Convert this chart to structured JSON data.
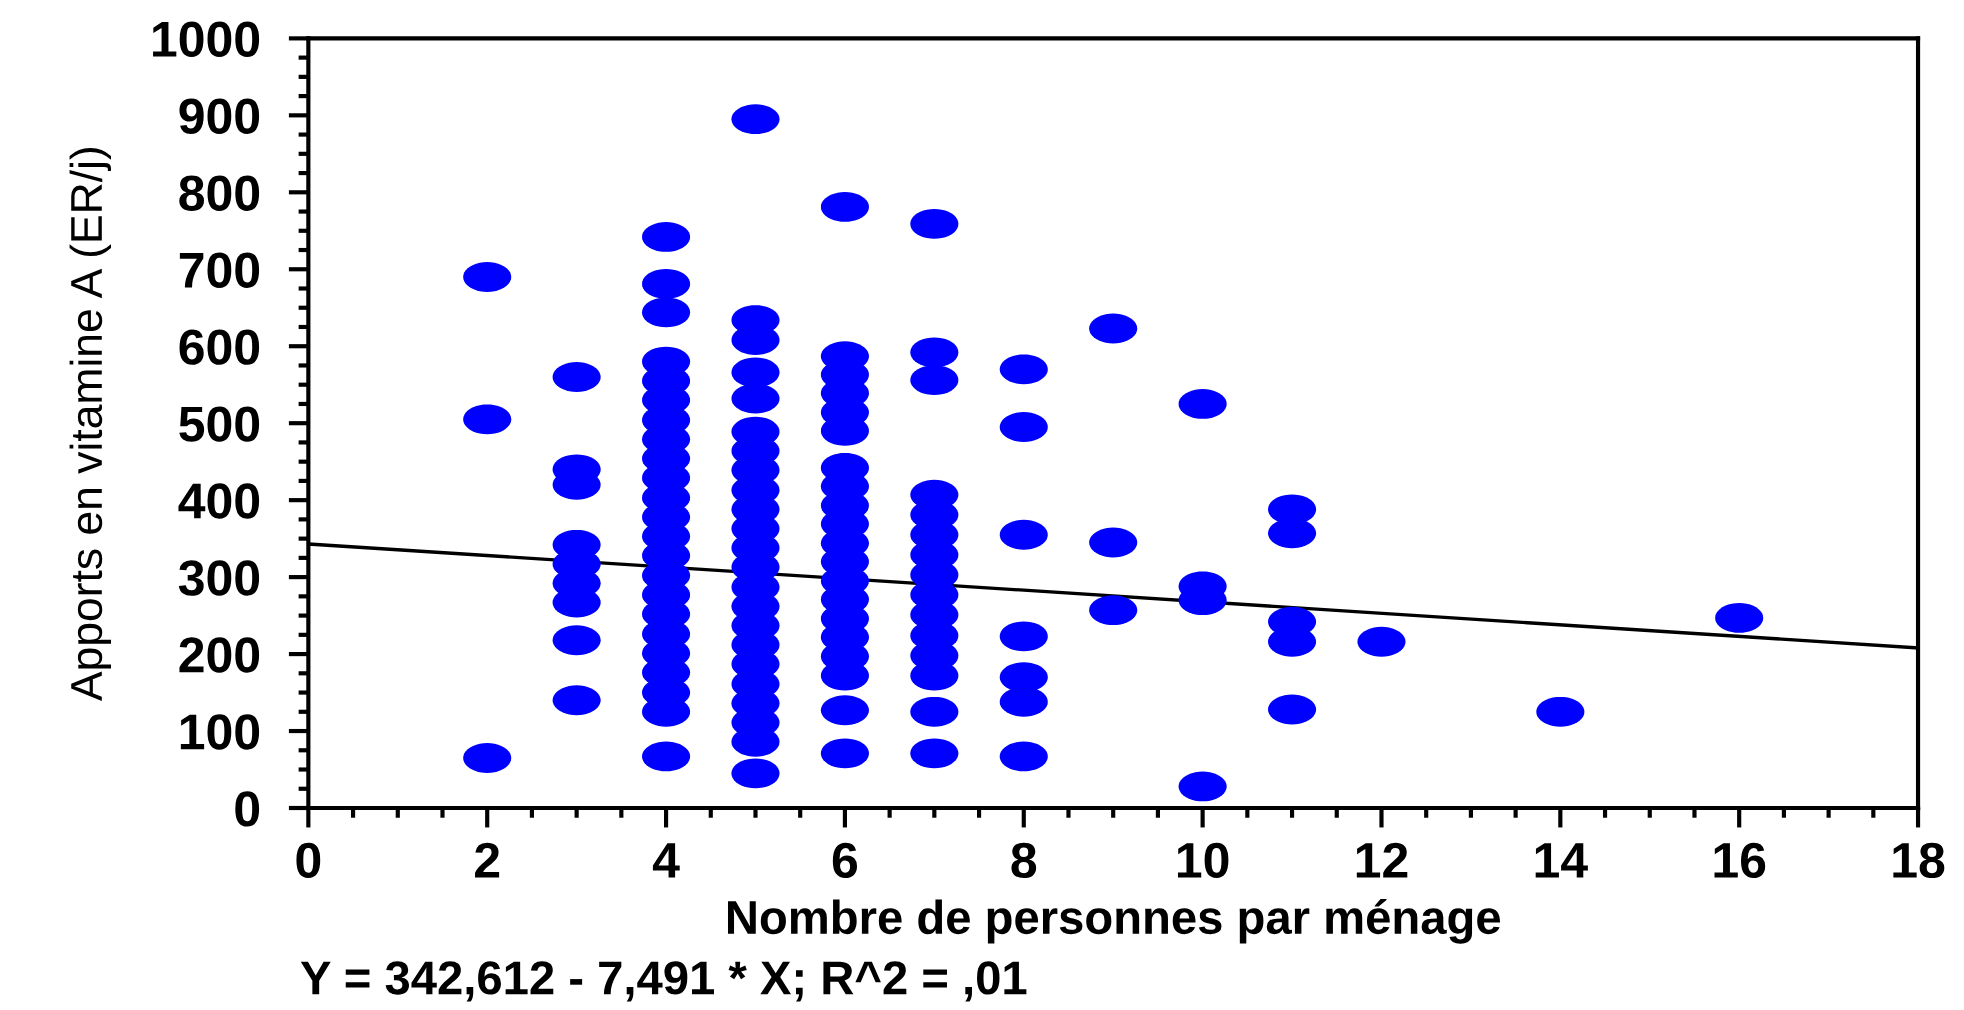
{
  "chart_data": {
    "type": "scatter",
    "xlabel": "Nombre de personnes par ménage",
    "ylabel": "Apports en vitamine A (ER/j)",
    "annotations": [
      "Y = 342,612 - 7,491 * X; R^2 = ,01"
    ],
    "xlim": [
      0,
      18
    ],
    "xticks": [
      0,
      {
        "value": 0.5,
        "label": null
      },
      {
        "value": 1,
        "label": null
      },
      {
        "value": 1.5,
        "label": null
      },
      2,
      {
        "value": 2.5,
        "label": null
      },
      {
        "value": 3,
        "label": null
      },
      {
        "value": 3.5,
        "label": null
      },
      4,
      {
        "value": 4.5,
        "label": null
      },
      {
        "value": 5,
        "label": null
      },
      {
        "value": 5.5,
        "label": null
      },
      6,
      {
        "value": 6.5,
        "label": null
      },
      {
        "value": 7,
        "label": null
      },
      {
        "value": 7.5,
        "label": null
      },
      8,
      {
        "value": 8.5,
        "label": null
      },
      {
        "value": 9,
        "label": null
      },
      {
        "value": 9.5,
        "label": null
      },
      10,
      {
        "value": 10.5,
        "label": null
      },
      {
        "value": 11,
        "label": null
      },
      {
        "value": 11.5,
        "label": null
      },
      12,
      {
        "value": 12.5,
        "label": null
      },
      {
        "value": 13,
        "label": null
      },
      {
        "value": 13.5,
        "label": null
      },
      14,
      {
        "value": 14.5,
        "label": null
      },
      {
        "value": 15,
        "label": null
      },
      {
        "value": 15.5,
        "label": null
      },
      16,
      {
        "value": 16.5,
        "label": null
      },
      {
        "value": 17,
        "label": null
      },
      {
        "value": 17.5,
        "label": null
      },
      18
    ],
    "ylim": [
      0,
      1000
    ],
    "yticks": [
      0,
      {
        "value": 25,
        "label": null
      },
      {
        "value": 50,
        "label": null
      },
      {
        "value": 75,
        "label": null
      },
      100,
      {
        "value": 125,
        "label": null
      },
      {
        "value": 150,
        "label": null
      },
      {
        "value": 175,
        "label": null
      },
      200,
      {
        "value": 225,
        "label": null
      },
      {
        "value": 250,
        "label": null
      },
      {
        "value": 275,
        "label": null
      },
      300,
      {
        "value": 325,
        "label": null
      },
      {
        "value": 350,
        "label": null
      },
      {
        "value": 375,
        "label": null
      },
      400,
      {
        "value": 425,
        "label": null
      },
      {
        "value": 450,
        "label": null
      },
      {
        "value": 475,
        "label": null
      },
      500,
      {
        "value": 525,
        "label": null
      },
      {
        "value": 550,
        "label": null
      },
      {
        "value": 575,
        "label": null
      },
      600,
      {
        "value": 625,
        "label": null
      },
      {
        "value": 650,
        "label": null
      },
      {
        "value": 675,
        "label": null
      },
      700,
      {
        "value": 725,
        "label": null
      },
      {
        "value": 750,
        "label": null
      },
      {
        "value": 775,
        "label": null
      },
      800,
      {
        "value": 825,
        "label": null
      },
      {
        "value": 850,
        "label": null
      },
      {
        "value": 875,
        "label": null
      },
      900,
      {
        "value": 925,
        "label": null
      },
      {
        "value": 950,
        "label": null
      },
      {
        "value": 975,
        "label": null
      },
      1000
    ],
    "series": [
      {
        "color": "#0000ff",
        "marker": "circle",
        "x": [
          2,
          2,
          2,
          3,
          3,
          3,
          3,
          3,
          3,
          3,
          3,
          3,
          4,
          4,
          4,
          4,
          4,
          4,
          4,
          4,
          4,
          4,
          4,
          4,
          4,
          4,
          4,
          4,
          4,
          4,
          4,
          4,
          4,
          4,
          4,
          5,
          5,
          5,
          5,
          5,
          5,
          5,
          5,
          5,
          5,
          5,
          5,
          5,
          5,
          5,
          5,
          5,
          5,
          5,
          5,
          5,
          5,
          5,
          6,
          6,
          6,
          6,
          6,
          6,
          6,
          6,
          6,
          6,
          6,
          6,
          6,
          6,
          6,
          6,
          6,
          6,
          6,
          6,
          7,
          7,
          7,
          7,
          7,
          7,
          7,
          7,
          7,
          7,
          7,
          7,
          7,
          7,
          7,
          8,
          8,
          8,
          8,
          8,
          8,
          8,
          9,
          9,
          9,
          10,
          10,
          10,
          10,
          11,
          11,
          11,
          11,
          11,
          12,
          14,
          16
        ],
        "values": [
          690,
          505,
          65,
          560,
          440,
          420,
          342,
          317,
          292,
          267,
          218,
          140,
          742,
          681,
          644,
          580,
          555,
          530,
          504,
          479,
          454,
          429,
          403,
          378,
          353,
          328,
          302,
          277,
          252,
          226,
          201,
          176,
          150,
          125,
          67,
          895,
          634,
          608,
          566,
          532,
          489,
          464,
          439,
          413,
          388,
          363,
          338,
          313,
          287,
          262,
          237,
          212,
          187,
          161,
          136,
          111,
          86,
          45,
          781,
          587,
          563,
          539,
          514,
          490,
          442,
          418,
          393,
          369,
          344,
          320,
          295,
          271,
          246,
          222,
          197,
          172,
          127,
          71,
          759,
          592,
          556,
          407,
          381,
          355,
          329,
          303,
          277,
          251,
          224,
          198,
          172,
          125,
          71,
          570,
          495,
          355,
          223,
          170,
          138,
          67,
          623,
          345,
          257,
          525,
          288,
          270,
          28,
          388,
          357,
          242,
          216,
          128,
          216,
          125,
          247
        ]
      },
      {
        "type": "line",
        "color": "#000000",
        "x": [
          0,
          18
        ],
        "values": [
          343,
          208
        ]
      }
    ]
  }
}
